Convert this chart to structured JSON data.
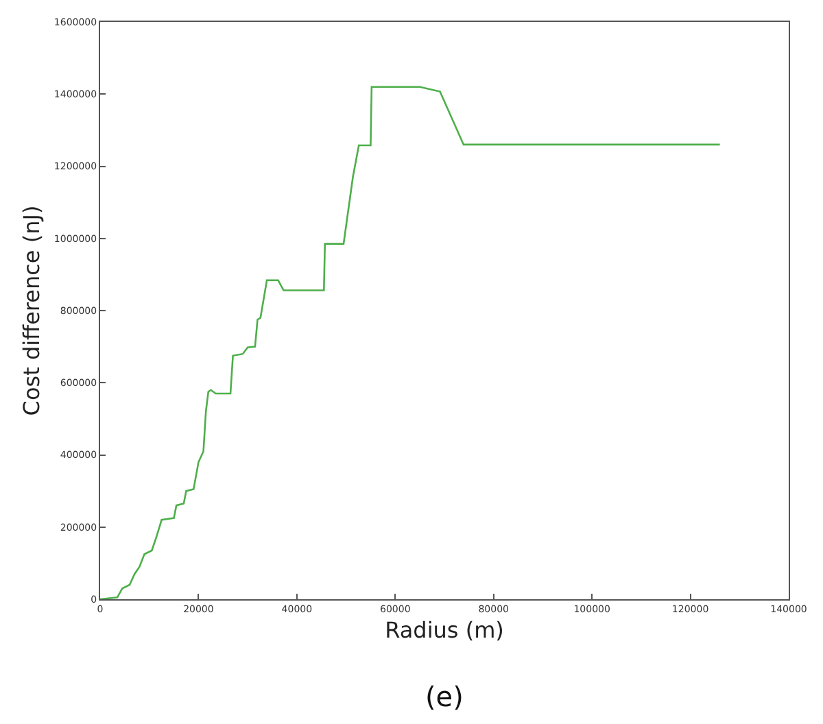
{
  "chart_data": {
    "type": "line",
    "xlabel": "Radius (m)",
    "ylabel": "Cost difference (nJ)",
    "annotations": [
      "(e)"
    ],
    "series": [
      {
        "color": "#4daf4a",
        "x": [
          0,
          3500,
          4500,
          6000,
          7000,
          8000,
          9000,
          10500,
          11500,
          12500,
          15000,
          15500,
          17000,
          17500,
          19000,
          20000,
          21000,
          21500,
          22000,
          22500,
          23500,
          26500,
          27000,
          29000,
          30000,
          31500,
          32000,
          32600,
          33900,
          36200,
          37300,
          45500,
          45700,
          49500,
          51400,
          52600,
          55000,
          55200,
          65000,
          69100,
          73900,
          126000
        ],
        "values": [
          0,
          5000,
          30000,
          40000,
          70000,
          90000,
          125000,
          135000,
          175000,
          220000,
          225000,
          260000,
          265000,
          300000,
          305000,
          380000,
          410000,
          520000,
          575000,
          580000,
          570000,
          570000,
          675000,
          680000,
          698000,
          700000,
          775000,
          780000,
          884000,
          884000,
          856000,
          856000,
          985000,
          985000,
          1171000,
          1258000,
          1258000,
          1420000,
          1420000,
          1407000,
          1260000,
          1260000
        ]
      }
    ],
    "xlim": [
      0,
      140000
    ],
    "xticks": [
      0,
      20000,
      40000,
      60000,
      80000,
      100000,
      120000,
      140000
    ],
    "ylim": [
      0,
      1600000
    ],
    "yticks": [
      0,
      200000,
      400000,
      600000,
      800000,
      1000000,
      1200000,
      1400000,
      1600000
    ],
    "legend": false,
    "marker": "none",
    "line_style": "solid"
  }
}
